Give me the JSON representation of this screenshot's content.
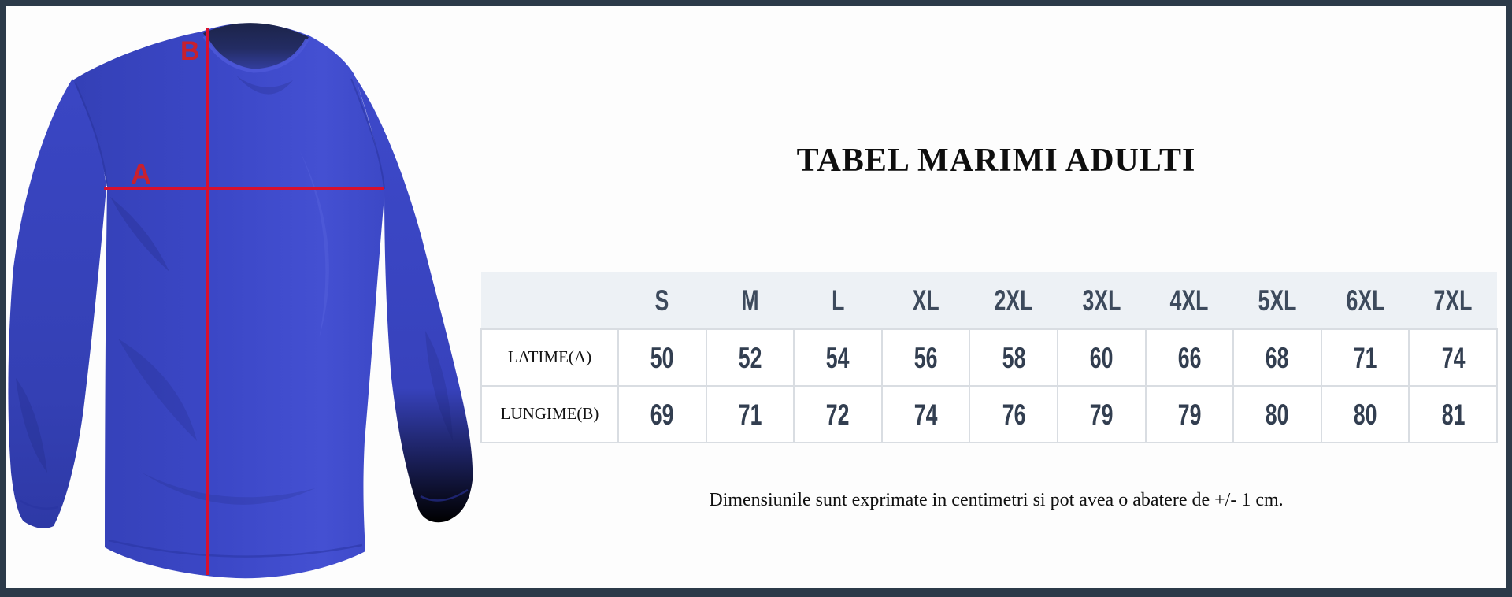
{
  "frame": {
    "border_color": "#2c3a49",
    "background_color": "#fdfdfd"
  },
  "diagram": {
    "label_a": "A",
    "label_b": "B",
    "line_color": "#d8102e",
    "label_color": "#c9202e",
    "shirt_color": "#3a46c4"
  },
  "size_chart": {
    "title": "TABEL MARIMI ADULTI",
    "columns": [
      "S",
      "M",
      "L",
      "XL",
      "2XL",
      "3XL",
      "4XL",
      "5XL",
      "6XL",
      "7XL"
    ],
    "rows": [
      {
        "label": "LATIME(A)",
        "values": [
          "50",
          "52",
          "54",
          "56",
          "58",
          "60",
          "66",
          "68",
          "71",
          "74"
        ]
      },
      {
        "label": "LUNGIME(B)",
        "values": [
          "69",
          "71",
          "72",
          "74",
          "76",
          "79",
          "79",
          "80",
          "80",
          "81"
        ]
      }
    ],
    "footnote": "Dimensiunile sunt exprimate in centimetri si pot avea o abatere de +/- 1 cm.",
    "header_bg": "#edf1f5",
    "grid_color": "#d9dde2",
    "number_color": "#323e50"
  }
}
